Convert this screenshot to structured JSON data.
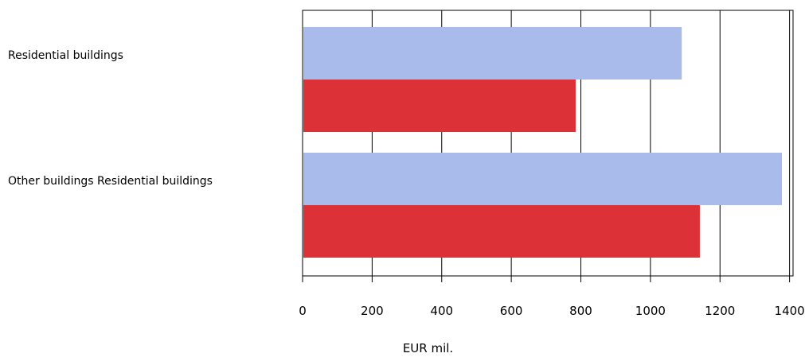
{
  "chart_data": {
    "type": "bar",
    "orientation": "horizontal",
    "categories": [
      "Residential buildings",
      "Other buildings Residential buildings"
    ],
    "series": [
      {
        "values": [
          1090,
          1378
        ]
      },
      {
        "values": [
          785,
          1142
        ]
      }
    ],
    "xlabel": "EUR mil.",
    "ylabel": "",
    "xlim": [
      0,
      1410
    ],
    "xticks": [
      "0",
      "200",
      "400",
      "600",
      "800",
      "1000",
      "1200",
      "1400"
    ],
    "grid": true,
    "colors": [
      "#a9bbea",
      "#dc3237"
    ]
  }
}
